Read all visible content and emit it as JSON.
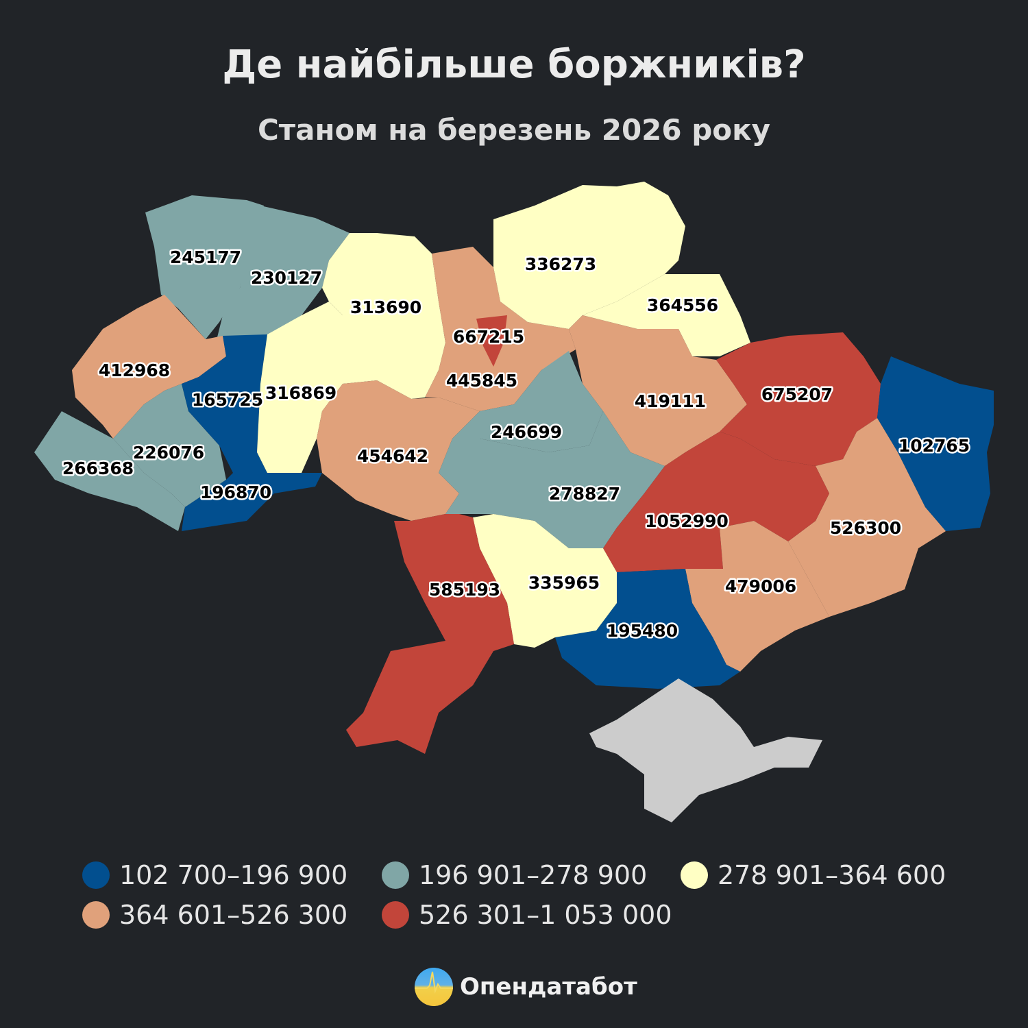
{
  "header": {
    "title": "Де найбільше боржників?",
    "subtitle": "Станом на березень 2026 року"
  },
  "colors": {
    "background": "#212428",
    "bin1": "#024f8f",
    "bin2": "#80a6a6",
    "bin3": "#ffffc4",
    "bin4": "#e0a17b",
    "bin5": "#c2453a",
    "no_data": "#cccccc"
  },
  "legend": [
    {
      "label": "102 700–196 900",
      "bin": "bin1"
    },
    {
      "label": "196 901–278 900",
      "bin": "bin2"
    },
    {
      "label": "278 901–364 600",
      "bin": "bin3"
    },
    {
      "label": "364 601–526 300",
      "bin": "bin4"
    },
    {
      "label": "526 301–1 053 000",
      "bin": "bin5"
    }
  ],
  "regions": {
    "volyn": {
      "value": "245177",
      "bin": "bin2"
    },
    "rivne": {
      "value": "230127",
      "bin": "bin2"
    },
    "lviv": {
      "value": "412968",
      "bin": "bin4"
    },
    "zakarpattia": {
      "value": "266368",
      "bin": "bin2"
    },
    "ivano_frankivsk": {
      "value": "226076",
      "bin": "bin2"
    },
    "ternopil": {
      "value": "165725",
      "bin": "bin1"
    },
    "chernivtsi": {
      "value": "196870",
      "bin": "bin1"
    },
    "khmelnytskyi": {
      "value": "316869",
      "bin": "bin3"
    },
    "zhytomyr": {
      "value": "313690",
      "bin": "bin3"
    },
    "kyiv_oblast": {
      "value": "445845",
      "bin": "bin4"
    },
    "kyiv_city": {
      "value": "667215",
      "bin": "bin5"
    },
    "vinnytsia": {
      "value": "454642",
      "bin": "bin4"
    },
    "chernihiv": {
      "value": "336273",
      "bin": "bin3"
    },
    "sumy": {
      "value": "364556",
      "bin": "bin3"
    },
    "poltava": {
      "value": "419111",
      "bin": "bin4"
    },
    "cherkasy": {
      "value": "246699",
      "bin": "bin2"
    },
    "kirovohrad": {
      "value": "278827",
      "bin": "bin2"
    },
    "kharkiv": {
      "value": "675207",
      "bin": "bin5"
    },
    "luhansk": {
      "value": "102765",
      "bin": "bin1"
    },
    "donetsk": {
      "value": "526300",
      "bin": "bin4"
    },
    "dnipropetrovsk": {
      "value": "1052990",
      "bin": "bin5"
    },
    "zaporizhzhia": {
      "value": "479006",
      "bin": "bin4"
    },
    "kherson": {
      "value": "195480",
      "bin": "bin1"
    },
    "mykolaiv": {
      "value": "335965",
      "bin": "bin3"
    },
    "odesa": {
      "value": "585193",
      "bin": "bin5"
    },
    "crimea": {
      "bin": "no_data"
    }
  },
  "brand": {
    "name": "Опендатабот",
    "logo_icon": "ukraine-pulse-logo"
  }
}
